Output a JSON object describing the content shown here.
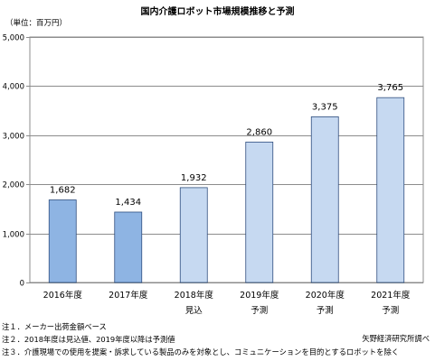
{
  "chart_data": {
    "type": "bar",
    "title": "国内介護ロボット市場規模推移と予測",
    "unit": "（単位：百万円）",
    "categories": [
      [
        "2016年度",
        ""
      ],
      [
        "2017年度",
        ""
      ],
      [
        "2018年度",
        "見込"
      ],
      [
        "2019年度",
        "予測"
      ],
      [
        "2020年度",
        "予測"
      ],
      [
        "2021年度",
        "予測"
      ]
    ],
    "values": [
      1682,
      1434,
      1932,
      2860,
      3375,
      3765
    ],
    "value_labels": [
      "1,682",
      "1,434",
      "1,932",
      "2,860",
      "3,375",
      "3,765"
    ],
    "ylim": [
      0,
      5000
    ],
    "y_ticks": [
      0,
      1000,
      2000,
      3000,
      4000,
      5000
    ],
    "y_tick_labels": [
      "0",
      "1,000",
      "2,000",
      "3,000",
      "4,000",
      "5,000"
    ],
    "grid": true,
    "colors": {
      "actual": "#8eb4e3",
      "forecast": "#c6d9f1",
      "stroke": "#2f4f7f",
      "grid": "#8c8c8c"
    },
    "bar_kind": [
      "actual",
      "actual",
      "forecast",
      "forecast",
      "forecast",
      "forecast"
    ]
  },
  "notes": [
    "注１．メーカー出荷金額ベース",
    "注２．2018年度は見込値、2019年度以降は予測値",
    "注３．介護現場での使用を提案・訴求している製品のみを対象とし、コミュニケーションを目的とするロボットを除く"
  ],
  "source": "矢野経済研究所調べ"
}
